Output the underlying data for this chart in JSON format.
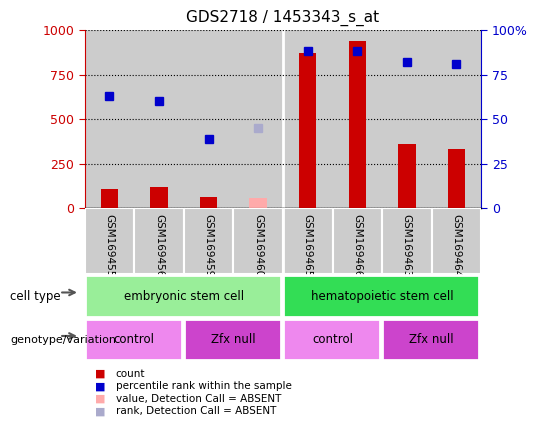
{
  "title": "GDS2718 / 1453343_s_at",
  "samples": [
    "GSM169455",
    "GSM169456",
    "GSM169459",
    "GSM169460",
    "GSM169465",
    "GSM169466",
    "GSM169463",
    "GSM169464"
  ],
  "count_values": [
    110,
    120,
    60,
    null,
    870,
    940,
    360,
    330
  ],
  "count_absent": [
    null,
    null,
    null,
    55,
    null,
    null,
    null,
    null
  ],
  "rank_values": [
    630,
    600,
    390,
    null,
    880,
    880,
    820,
    810
  ],
  "rank_absent": [
    null,
    null,
    null,
    450,
    null,
    null,
    null,
    null
  ],
  "ylim_left": [
    0,
    1000
  ],
  "ylim_right": [
    0,
    100
  ],
  "yticks_left": [
    0,
    250,
    500,
    750,
    1000
  ],
  "yticks_right": [
    0,
    25,
    50,
    75,
    100
  ],
  "bar_color": "#cc0000",
  "bar_absent_color": "#ffaaaa",
  "dot_color": "#0000cc",
  "dot_absent_color": "#aaaacc",
  "cell_type_groups": [
    {
      "label": "embryonic stem cell",
      "start": 0,
      "end": 4,
      "color": "#99ee99"
    },
    {
      "label": "hematopoietic stem cell",
      "start": 4,
      "end": 8,
      "color": "#33dd55"
    }
  ],
  "genotype_groups": [
    {
      "label": "control",
      "start": 0,
      "end": 2,
      "color": "#ee88ee"
    },
    {
      "label": "Zfx null",
      "start": 2,
      "end": 4,
      "color": "#cc44cc"
    },
    {
      "label": "control",
      "start": 4,
      "end": 6,
      "color": "#ee88ee"
    },
    {
      "label": "Zfx null",
      "start": 6,
      "end": 8,
      "color": "#cc44cc"
    }
  ],
  "left_axis_color": "#cc0000",
  "right_axis_color": "#0000cc",
  "background_color": "#ffffff",
  "sample_bg_color": "#cccccc",
  "cell_type_label": "cell type",
  "genotype_label": "genotype/variation",
  "legend_items": [
    {
      "label": "count",
      "color": "#cc0000"
    },
    {
      "label": "percentile rank within the sample",
      "color": "#0000cc"
    },
    {
      "label": "value, Detection Call = ABSENT",
      "color": "#ffaaaa"
    },
    {
      "label": "rank, Detection Call = ABSENT",
      "color": "#aaaacc"
    }
  ]
}
